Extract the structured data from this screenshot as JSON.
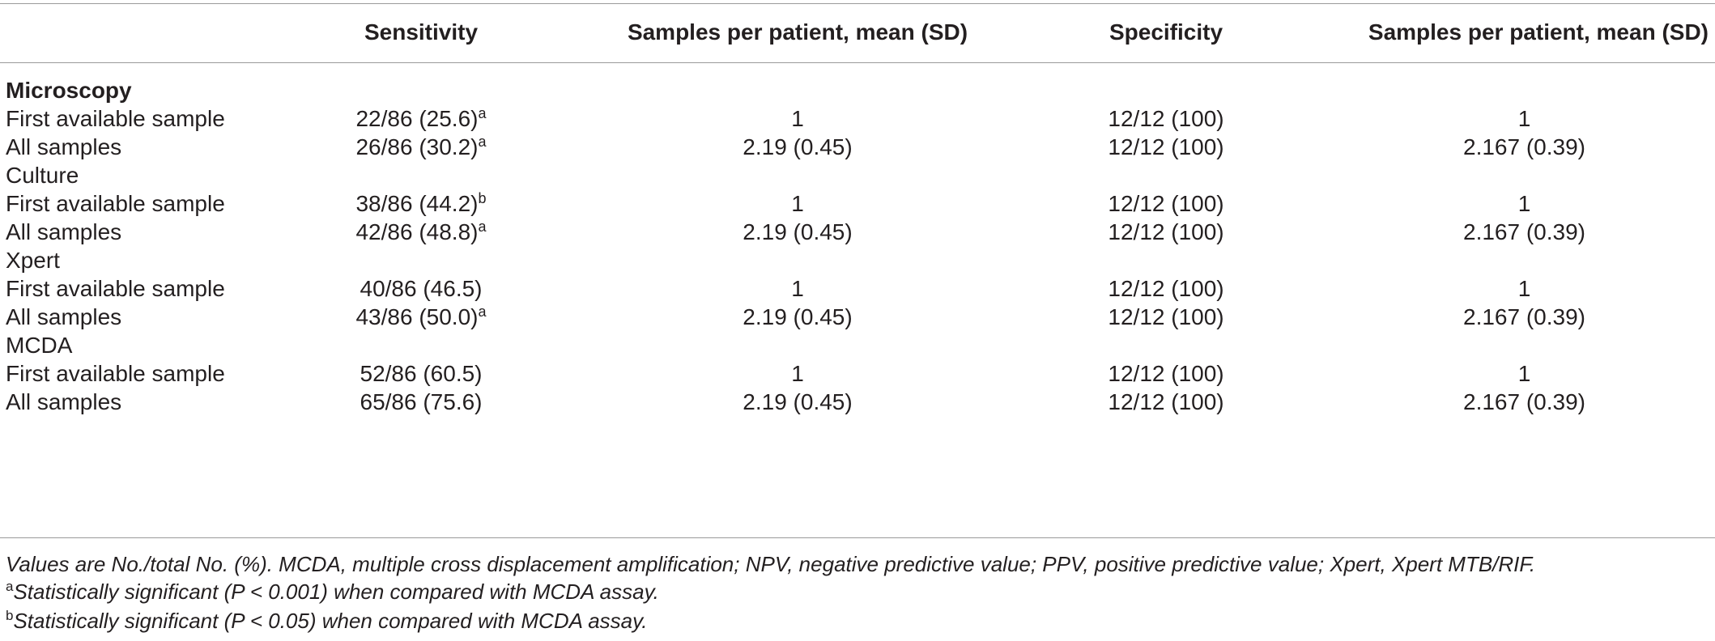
{
  "headers": {
    "sensitivity": "Sensitivity",
    "samples_sens": "Samples per patient, mean (SD)",
    "specificity": "Specificity",
    "samples_spec": "Samples per patient, mean (SD)"
  },
  "rows": [
    {
      "label": "Microscopy",
      "type": "section-bold"
    },
    {
      "label": "First available sample",
      "sens": "22/86 (25.6)",
      "sens_sup": "a",
      "samples1": "1",
      "spec": "12/12 (100)",
      "samples2": "1"
    },
    {
      "label": "All samples",
      "sens": "26/86 (30.2)",
      "sens_sup": "a",
      "samples1": "2.19 (0.45)",
      "spec": "12/12 (100)",
      "samples2": "2.167 (0.39)"
    },
    {
      "label": "Culture",
      "type": "section"
    },
    {
      "label": "First available sample",
      "sens": "38/86 (44.2)",
      "sens_sup": "b",
      "samples1": "1",
      "spec": "12/12 (100)",
      "samples2": "1"
    },
    {
      "label": "All samples",
      "sens": "42/86 (48.8)",
      "sens_sup": "a",
      "samples1": "2.19 (0.45)",
      "spec": "12/12 (100)",
      "samples2": "2.167 (0.39)"
    },
    {
      "label": "Xpert",
      "type": "section"
    },
    {
      "label": "First available sample",
      "sens": "40/86 (46.5)",
      "sens_sup": "",
      "samples1": "1",
      "spec": "12/12 (100)",
      "samples2": "1"
    },
    {
      "label": "All samples",
      "sens": "43/86 (50.0)",
      "sens_sup": "a",
      "samples1": "2.19 (0.45)",
      "spec": "12/12 (100)",
      "samples2": "2.167 (0.39)"
    },
    {
      "label": "MCDA",
      "type": "section"
    },
    {
      "label": "First available sample",
      "sens": "52/86 (60.5)",
      "sens_sup": "",
      "samples1": "1",
      "spec": "12/12 (100)",
      "samples2": "1"
    },
    {
      "label": "All samples",
      "sens": "65/86 (75.6)",
      "sens_sup": "",
      "samples1": "2.19 (0.45)",
      "spec": "12/12 (100)",
      "samples2": "2.167 (0.39)"
    }
  ],
  "footnotes": {
    "main": "Values are No./total No. (%). MCDA, multiple cross displacement amplification; NPV, negative predictive value; PPV, positive predictive value; Xpert, Xpert MTB/RIF.",
    "a_mark": "a",
    "a_text": "Statistically significant (P < 0.001) when compared with MCDA assay.",
    "b_mark": "b",
    "b_text": "Statistically significant (P < 0.05) when compared with MCDA assay."
  }
}
